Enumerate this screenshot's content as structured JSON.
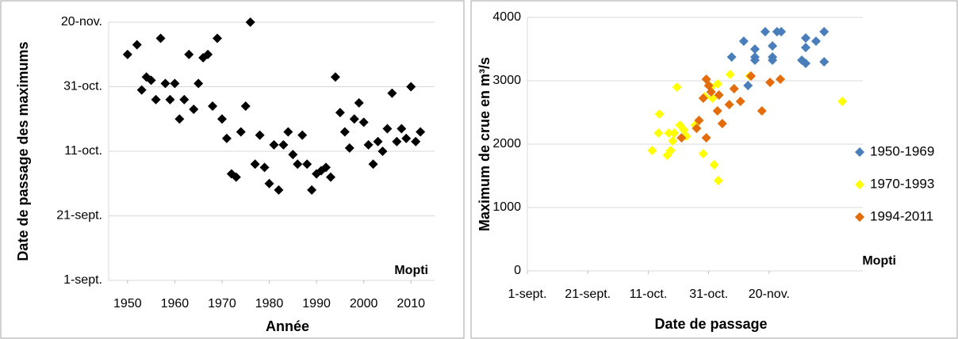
{
  "chart_data": [
    {
      "type": "scatter",
      "xlabel": "Année",
      "ylabel": "Date de passage des maximums",
      "annotation": "Mopti",
      "xlim": [
        1946,
        2015
      ],
      "xticks": [
        1950,
        1960,
        1970,
        1980,
        1990,
        2000,
        2010
      ],
      "ylim": [
        244,
        324
      ],
      "yticks": [
        {
          "value": 244,
          "label": "1-sept."
        },
        {
          "value": 264,
          "label": "21-sept."
        },
        {
          "value": 284,
          "label": "11-oct."
        },
        {
          "value": 304,
          "label": "31-oct."
        },
        {
          "value": 324,
          "label": "20-nov."
        }
      ],
      "grid": true,
      "series": [
        {
          "color": "#000000",
          "x": [
            1950,
            1952,
            1953,
            1954,
            1955,
            1956,
            1957,
            1958,
            1959,
            1960,
            1961,
            1962,
            1963,
            1964,
            1965,
            1966,
            1967,
            1968,
            1969,
            1970,
            1971,
            1972,
            1973,
            1974,
            1975,
            1976,
            1977,
            1978,
            1979,
            1980,
            1981,
            1982,
            1983,
            1984,
            1985,
            1986,
            1987,
            1988,
            1989,
            1990,
            1991,
            1992,
            1993,
            1994,
            1995,
            1996,
            1997,
            1998,
            1999,
            2000,
            2001,
            2002,
            2003,
            2004,
            2005,
            2006,
            2007,
            2008,
            2009,
            2010,
            2011,
            2012
          ],
          "values": [
            314,
            317,
            303,
            307,
            306,
            300,
            319,
            305,
            300,
            305,
            294,
            300,
            314,
            297,
            305,
            313,
            314,
            298,
            319,
            294,
            288,
            277,
            276,
            290,
            298,
            324,
            280,
            289,
            279,
            274,
            286,
            272,
            286,
            290,
            283,
            280,
            289,
            280,
            272,
            277,
            278,
            279,
            276,
            307,
            296,
            290,
            285,
            294,
            299,
            293,
            286,
            280,
            287,
            284,
            291,
            302,
            287,
            291,
            288,
            304,
            287,
            290
          ]
        }
      ]
    },
    {
      "type": "scatter",
      "xlabel": "Date de passage",
      "ylabel": "Maximum de crue en m³/s",
      "annotation": "Mopti",
      "xlim": [
        244,
        355
      ],
      "xticks": [
        {
          "value": 244,
          "label": "1-sept."
        },
        {
          "value": 264,
          "label": "21-sept."
        },
        {
          "value": 284,
          "label": "11-oct."
        },
        {
          "value": 304,
          "label": "31-oct."
        },
        {
          "value": 324,
          "label": "20-nov."
        }
      ],
      "ylim": [
        0,
        4000
      ],
      "yticks": [
        0,
        1000,
        2000,
        3000,
        4000
      ],
      "grid": true,
      "legend": "right",
      "series": [
        {
          "name": "1950-1969",
          "color": "#4a7ebb",
          "x": [
            311.6,
            315.6,
            317,
            319.3,
            319.3,
            319.3,
            322.7,
            325.1,
            325.1,
            325.1,
            326.6,
            328,
            334.8,
            336.1,
            336.1,
            336.1,
            339.5,
            342.2,
            342.2
          ],
          "values": [
            3375,
            3625,
            2925,
            3500,
            3375,
            3325,
            3775,
            3550,
            3375,
            3325,
            3775,
            3775,
            3325,
            3675,
            3525,
            3275,
            3625,
            3775,
            3300
          ]
        },
        {
          "name": "1970-1993",
          "color": "#ffff00",
          "x": [
            285.3,
            287.4,
            287.7,
            290.3,
            290.8,
            291.4,
            292.1,
            292.6,
            293.5,
            294.5,
            295.8,
            296.6,
            299.5,
            302.2,
            302.7,
            304.8,
            305.3,
            305.8,
            307.2,
            307,
            311.1,
            317.6,
            348.2
          ],
          "values": [
            1900,
            2175,
            2475,
            1825,
            2175,
            1900,
            2050,
            2175,
            2900,
            2300,
            2225,
            2125,
            2300,
            1850,
            2750,
            2900,
            2725,
            1675,
            1425,
            2950,
            3100,
            3075,
            2675
          ]
        },
        {
          "name": "1994-2011",
          "color": "#e46c0a",
          "x": [
            295,
            300,
            300.8,
            302.2,
            303.2,
            303.2,
            304,
            304.8,
            306.9,
            307.4,
            308.5,
            310.8,
            312.4,
            314.5,
            318,
            321.6,
            324.3,
            327.7
          ],
          "values": [
            2100,
            2250,
            2375,
            2725,
            3025,
            2100,
            2925,
            2825,
            2525,
            2775,
            2325,
            2625,
            2875,
            2675,
            3075,
            2525,
            2975,
            3025
          ]
        }
      ]
    }
  ]
}
